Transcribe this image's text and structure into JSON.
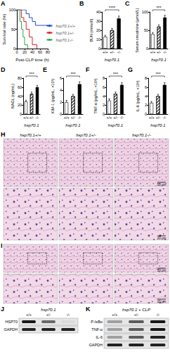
{
  "chart_data": [
    {
      "panel": "A",
      "type": "line",
      "step": true,
      "xlabel": "Post-CLP time (h)",
      "ylabel": "Survival rate (%)",
      "xlim": [
        0,
        80
      ],
      "xticks": [
        0,
        20,
        40,
        60,
        80
      ],
      "ylim": [
        0,
        100
      ],
      "yticks": [
        0,
        50,
        100
      ],
      "legend": "right",
      "grid": false,
      "series": [
        {
          "name": "hsp70.1+/+",
          "color": "#1f4fd8",
          "x": [
            0,
            20,
            24,
            32,
            40,
            48,
            80
          ],
          "values": [
            100,
            100,
            90,
            80,
            70,
            60,
            60
          ]
        },
        {
          "name": "hsp70.1+/-",
          "color": "#e0202a",
          "x": [
            0,
            12,
            18,
            24,
            32,
            40,
            52
          ],
          "values": [
            100,
            80,
            70,
            50,
            30,
            10,
            0
          ]
        },
        {
          "name": "hsp70.1-/-",
          "color": "#2aa84a",
          "x": [
            0,
            8,
            12,
            16,
            20,
            28
          ],
          "values": [
            100,
            70,
            50,
            30,
            10,
            0
          ]
        }
      ]
    },
    {
      "panel": "B",
      "type": "bar",
      "xlabel": "hsp70.1",
      "ylabel": "BUN (mmol/l)",
      "categories": [
        "+/+",
        "+/-",
        "-/-"
      ],
      "values": [
        13,
        20,
        33
      ],
      "errors": [
        1.5,
        2,
        2.5
      ],
      "colors": [
        "#ffffff",
        "#ffffff",
        "#000000"
      ],
      "annotation": "****",
      "ylim": [
        0,
        40
      ],
      "yticks": [
        0,
        10,
        20,
        30,
        40
      ],
      "grid": false
    },
    {
      "panel": "C",
      "type": "bar",
      "xlabel": "hsp70.1",
      "ylabel": "Serum creatinine (μmol/L)",
      "categories": [
        "+/+",
        "+/-",
        "-/-"
      ],
      "values": [
        40,
        60,
        85
      ],
      "errors": [
        4,
        5,
        6
      ],
      "colors": [
        "#ffffff",
        "#ffffff",
        "#000000"
      ],
      "annotation": "***",
      "ylim": [
        0,
        100
      ],
      "yticks": [
        0,
        50,
        100
      ],
      "grid": false
    },
    {
      "panel": "D",
      "type": "bar",
      "xlabel": "hsp70.1",
      "ylabel": "NAGL (ng/mL)",
      "categories": [
        "+/+",
        "+/-",
        "-/-"
      ],
      "values": [
        28,
        45,
        60
      ],
      "errors": [
        3,
        4,
        4
      ],
      "colors": [
        "#ffffff",
        "#ffffff",
        "#000000"
      ],
      "annotation": "***",
      "ylim": [
        0,
        80
      ],
      "yticks": [
        0,
        20,
        40,
        60,
        80
      ],
      "grid": false
    },
    {
      "panel": "E",
      "type": "bar",
      "xlabel": "hsp70.1",
      "ylabel": "KIM-1 (pg/mL, ×10²)",
      "categories": [
        "+/+",
        "+/-",
        "-/-"
      ],
      "values": [
        2,
        3,
        5
      ],
      "errors": [
        0.3,
        0.3,
        0.4
      ],
      "colors": [
        "#ffffff",
        "#ffffff",
        "#000000"
      ],
      "annotation": "***",
      "ylim": [
        0,
        6
      ],
      "yticks": [
        0,
        2,
        4,
        6
      ],
      "grid": false
    },
    {
      "panel": "F",
      "type": "bar",
      "xlabel": "hsp70.1",
      "ylabel": "TNF-α (pg/mL, ×10²)",
      "categories": [
        "+/+",
        "+/-",
        "-/-"
      ],
      "values": [
        3,
        4.5,
        6.5
      ],
      "errors": [
        0.4,
        0.4,
        0.5
      ],
      "colors": [
        "#ffffff",
        "#ffffff",
        "#000000"
      ],
      "annotation": "***",
      "ylim": [
        0,
        8
      ],
      "yticks": [
        0,
        2,
        4,
        6,
        8
      ],
      "grid": false
    },
    {
      "panel": "G",
      "type": "bar",
      "xlabel": "hsp70.1",
      "ylabel": "IL-6 (pg/mL, ×10²)",
      "categories": [
        "+/+",
        "+/-",
        "-/-"
      ],
      "values": [
        2.5,
        4,
        6.5
      ],
      "errors": [
        0.3,
        0.4,
        0.5
      ],
      "colors": [
        "#ffffff",
        "#ffffff",
        "#000000"
      ],
      "annotation": "***",
      "ylim": [
        0,
        8
      ],
      "yticks": [
        0,
        2,
        4,
        6,
        8
      ],
      "grid": false
    }
  ],
  "images": [
    {
      "panel": "H",
      "columns": [
        "hsp70.1+/+",
        "hsp70.1+/-",
        "hsp70.1-/-"
      ],
      "scale_bars": [
        "50 μm",
        "20 μm"
      ]
    },
    {
      "panel": "I",
      "scale_bars": [
        "50 μm",
        "20 μm"
      ]
    }
  ],
  "blots": [
    {
      "panel": "J",
      "header": "hsp70.1",
      "lanes": [
        "+/+",
        "+/-",
        "-/-"
      ],
      "rows": [
        {
          "label": "HSP70",
          "intensity": [
            0.9,
            0.55,
            0.05
          ]
        },
        {
          "label": "GAPDH",
          "intensity": [
            0.85,
            0.85,
            0.85
          ]
        }
      ]
    },
    {
      "panel": "K",
      "header": "hsp70.1 + CLP",
      "lanes": [
        "+/+",
        "+/-",
        "-/-"
      ],
      "rows": [
        {
          "label": "P-IκBα",
          "intensity": [
            0.3,
            0.6,
            0.9
          ]
        },
        {
          "label": "TNF-α",
          "intensity": [
            0.3,
            0.6,
            0.9
          ]
        },
        {
          "label": "IL-6",
          "intensity": [
            0.3,
            0.6,
            0.85
          ]
        },
        {
          "label": "GAPDH",
          "intensity": [
            0.85,
            0.85,
            0.85
          ]
        }
      ]
    }
  ]
}
